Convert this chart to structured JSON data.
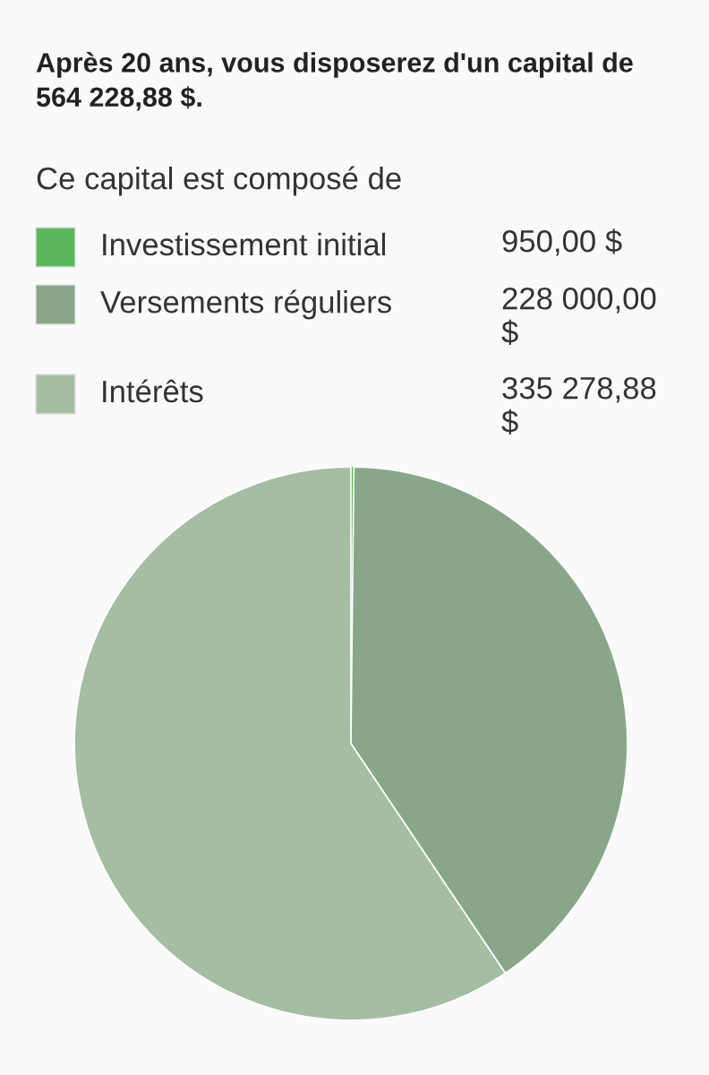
{
  "chart_data": {
    "type": "pie",
    "title": "Après 20 ans, vous disposerez d'un capital de 564 228,88 $.",
    "subtitle": "Ce capital est composé de",
    "categories": [
      "Investissement initial",
      "Versements réguliers",
      "Intérêts"
    ],
    "values": [
      950.0,
      228000.0,
      335278.88
    ],
    "value_labels": [
      "950,00 $",
      "228 000,00 $",
      "335 278,88 $"
    ],
    "colors": [
      "#5cb85c",
      "#8aa68a",
      "#a5bda3"
    ],
    "legend": "top"
  }
}
